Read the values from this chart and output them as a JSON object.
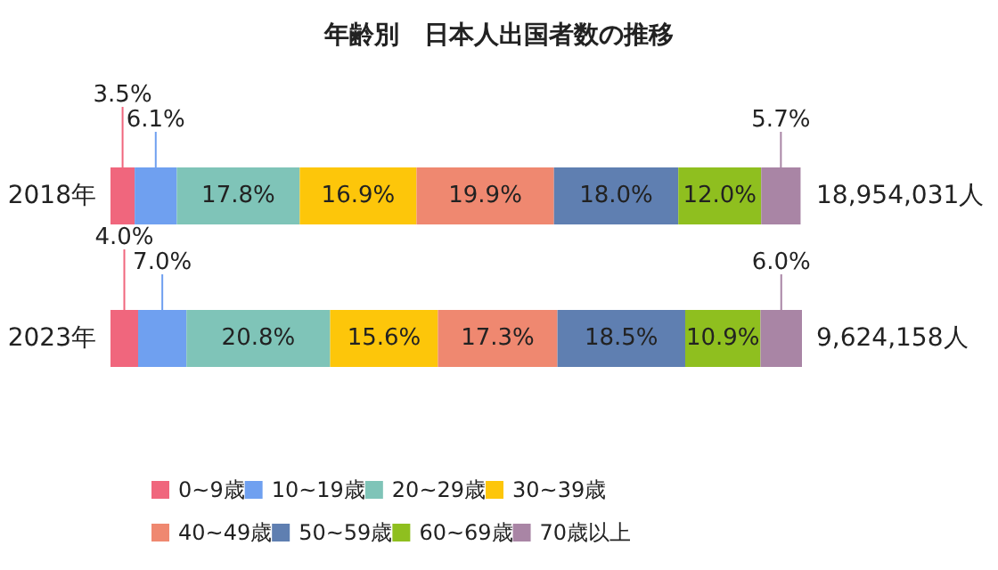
{
  "chart_data": {
    "type": "bar",
    "title": "年齢別　日本人出国者数の推移",
    "orientation": "horizontal",
    "stacked": true,
    "categories": [
      "2018年",
      "2023年"
    ],
    "series": [
      {
        "name": "0~9歳",
        "color": "#f0667d",
        "values": [
          3.5,
          4.0
        ],
        "value_labels": [
          "3.5%",
          "4.0%"
        ]
      },
      {
        "name": "10~19歳",
        "color": "#6fa0f0",
        "values": [
          6.1,
          7.0
        ],
        "value_labels": [
          "6.1%",
          "7.0%"
        ]
      },
      {
        "name": "20~29歳",
        "color": "#7fc4b8",
        "values": [
          17.8,
          20.8
        ],
        "value_labels": [
          "17.8%",
          "20.8%"
        ]
      },
      {
        "name": "30~39歳",
        "color": "#fdc60a",
        "values": [
          16.9,
          15.6
        ],
        "value_labels": [
          "16.9%",
          "15.6%"
        ]
      },
      {
        "name": "40~49歳",
        "color": "#ef8870",
        "values": [
          19.9,
          17.3
        ],
        "value_labels": [
          "19.9%",
          "17.3%"
        ]
      },
      {
        "name": "50~59歳",
        "color": "#5f7fb1",
        "values": [
          18.0,
          18.5
        ],
        "value_labels": [
          "18.0%",
          "18.5%"
        ]
      },
      {
        "name": "60~69歳",
        "color": "#8fbf1f",
        "values": [
          12.0,
          10.9
        ],
        "value_labels": [
          "12.0%",
          "10.9%"
        ]
      },
      {
        "name": "70歳以上",
        "color": "#a985a5",
        "values": [
          5.7,
          6.0
        ],
        "value_labels": [
          "5.7%",
          "6.0%"
        ]
      }
    ],
    "annotations": [
      "18,954,031人",
      "9,624,158人"
    ],
    "tick_labels": "y",
    "legend": "bottom"
  }
}
